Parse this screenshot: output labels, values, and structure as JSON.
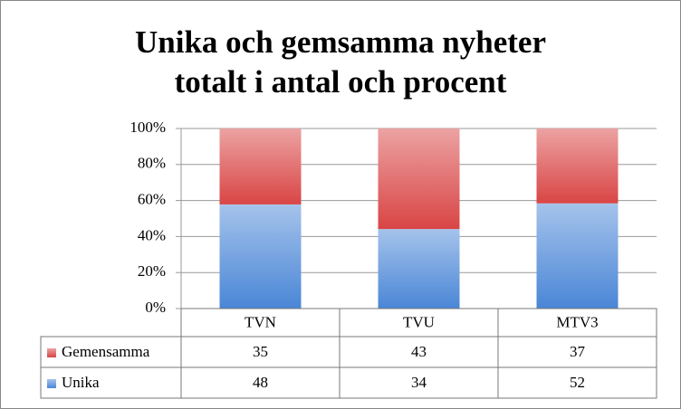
{
  "chart_data": {
    "type": "bar",
    "stacking": "percent",
    "title": [
      "Unika och gemsamma nyheter",
      "totalt i antal och procent"
    ],
    "categories": [
      "TVN",
      "TVU",
      "MTV3"
    ],
    "series": [
      {
        "name": "Gemensamma",
        "color": "#d94545",
        "values": [
          35,
          43,
          37
        ]
      },
      {
        "name": "Unika",
        "color": "#4a86d6",
        "values": [
          48,
          34,
          52
        ]
      }
    ],
    "ylim": [
      0,
      100
    ],
    "yticks": [
      {
        "value": 0,
        "label": "0%"
      },
      {
        "value": 20,
        "label": "20%"
      },
      {
        "value": 40,
        "label": "40%"
      },
      {
        "value": 60,
        "label": "60%"
      },
      {
        "value": 80,
        "label": "80%"
      },
      {
        "value": 100,
        "label": "100%"
      }
    ],
    "grid": true,
    "data_table": true
  }
}
